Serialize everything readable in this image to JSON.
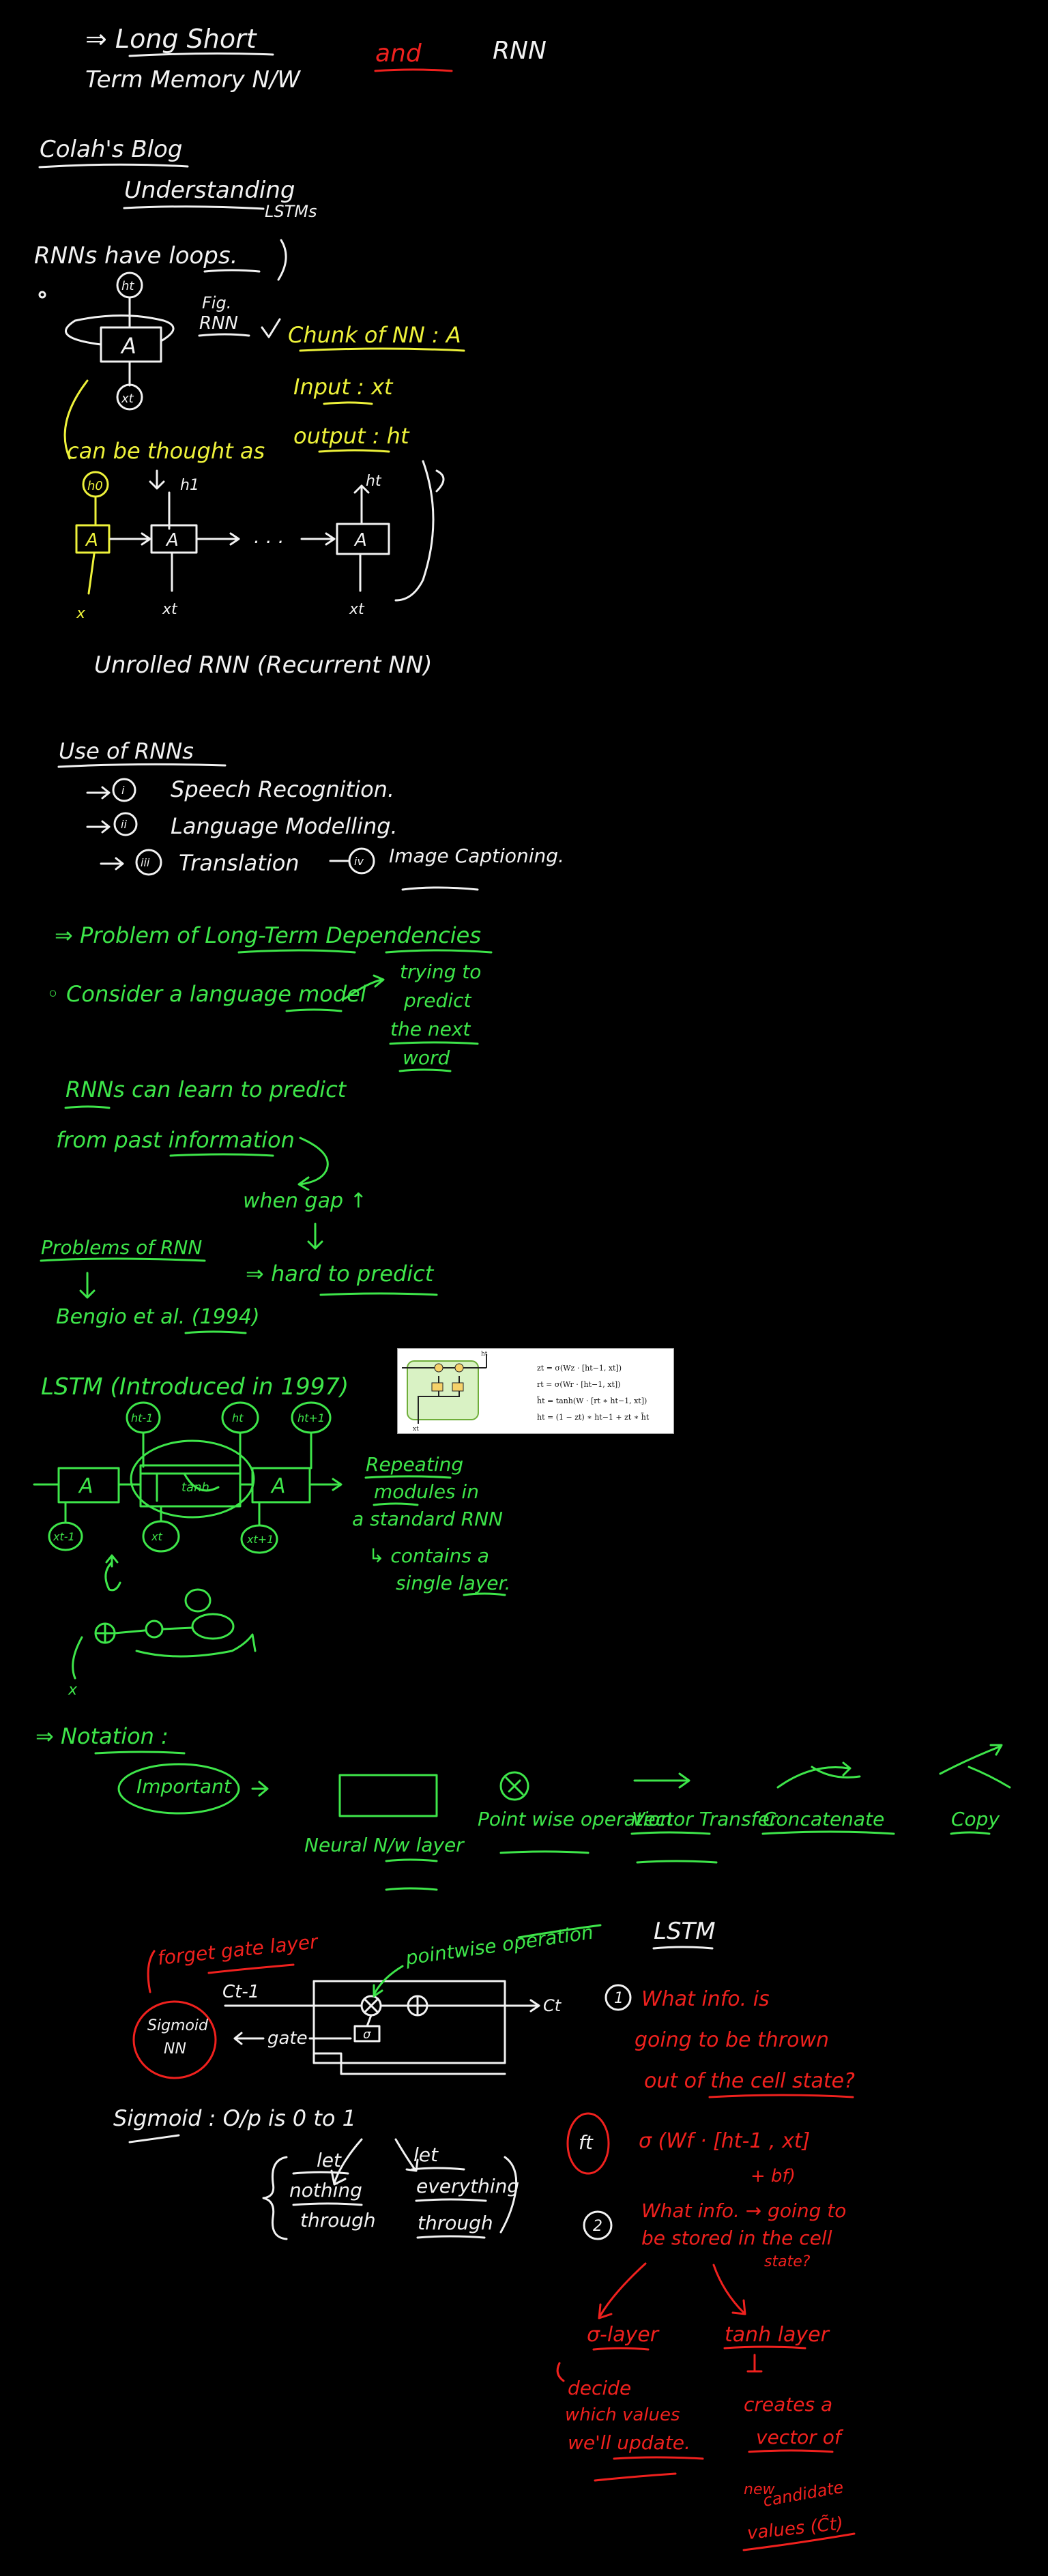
{
  "colors": {
    "white": "#f2f2f2",
    "yellow": "#eef23a",
    "green": "#3ee64a",
    "red": "#f0211e",
    "background": "#000000"
  },
  "title": {
    "line1": "⇒ Long Short",
    "line2": "Term Memory N/W",
    "and": "and",
    "rnn": "RNN"
  },
  "blog": {
    "name": "Colah's Blog",
    "understanding": "Understanding",
    "lstms": "LSTMs"
  },
  "rnn_loops": {
    "heading": "RNNs have loops.",
    "fig": "Fig.",
    "fig_rnn": "RNN",
    "block_a": "A",
    "ht": "ht",
    "xt": "xt",
    "chunk": "Chunk of NN : A",
    "input": "Input : xt",
    "output": "output : ht",
    "thought": "can be thought as",
    "unrolled_labels": [
      "h0",
      "h1",
      "ht",
      "x",
      "xt",
      "xt"
    ],
    "dots": ". . .",
    "unrolled": "Unrolled RNN (Recurrent NN)"
  },
  "uses": {
    "heading": "Use of RNNs",
    "items": [
      {
        "num": "i",
        "label": "Speech Recognition."
      },
      {
        "num": "ii",
        "label": "Language Modelling."
      },
      {
        "num": "iii",
        "label": "Translation"
      },
      {
        "num": "iv",
        "label": "Image Captioning."
      }
    ]
  },
  "problem": {
    "heading": "⇒ Problem of Long-Term Dependencies",
    "consider": "◦ Consider a language model",
    "trying": [
      "trying to",
      "predict",
      "the next",
      "word"
    ],
    "rnns_learn": "RNNs can learn to predict",
    "from_past": "from past information",
    "when_gap": "when gap ↑",
    "problems_of": "Problems of RNN",
    "hard": "⇒ hard to predict",
    "bengio": "Bengio et al. (1994)"
  },
  "lstm": {
    "heading": "LSTM (Introduced in 1997)",
    "cells": [
      "A",
      "A"
    ],
    "tanh": "tanh",
    "h_labels": [
      "ht-1",
      "ht",
      "ht+1"
    ],
    "x_labels": [
      "xt-1",
      "xt",
      "xt+1"
    ],
    "repeating": [
      "Repeating",
      "modules in",
      "a standard RNN",
      "↳ contains a",
      "single layer."
    ],
    "x": "x"
  },
  "figure": {
    "equations": [
      "zt = σ(Wz · [ht−1, xt])",
      "rt = σ(Wr · [ht−1, xt])",
      "h̃t = tanh(W · [rt ∗ ht−1, xt])",
      "ht = (1 − zt) ∗ ht−1 + zt ∗ h̃t"
    ],
    "h_label": "ht",
    "x_label": "xt"
  },
  "notation": {
    "heading": "⇒ Notation :",
    "important": "Important",
    "items": [
      "Neural N/w layer",
      "Point wise operation",
      "Vector Transfer",
      "Concatenate",
      "Copy"
    ]
  },
  "forget": {
    "forget_gate": "forget gate layer",
    "pointwise": "pointwise operation",
    "ct1": "Ct-1",
    "ct": "Ct",
    "sigmoid_nn": "Sigmoid NN",
    "gate": "gate",
    "sigma": "σ",
    "lstm": "LSTM",
    "q1": [
      "What info. is",
      "going to be thrown",
      "out of the cell state?"
    ],
    "ft": "ft",
    "ft_formula": "σ (Wf · [ht-1 , xt]",
    "ft_formula2": "+ bf)",
    "q2": [
      "What info. → going to",
      "be stored in the cell",
      "state?"
    ],
    "sigma_layer": "σ-layer",
    "tanh_layer": "tanh layer",
    "decide": [
      "decide",
      "which values",
      "we'll update."
    ],
    "creates": [
      "creates a",
      "vector of",
      "new",
      "candidate",
      "values (C̃t)"
    ]
  },
  "sigmoid": {
    "label": "Sigmoid : O/p is 0 to 1",
    "left": [
      "let",
      "nothing",
      "through"
    ],
    "right": [
      "let",
      "everything",
      "through"
    ]
  }
}
